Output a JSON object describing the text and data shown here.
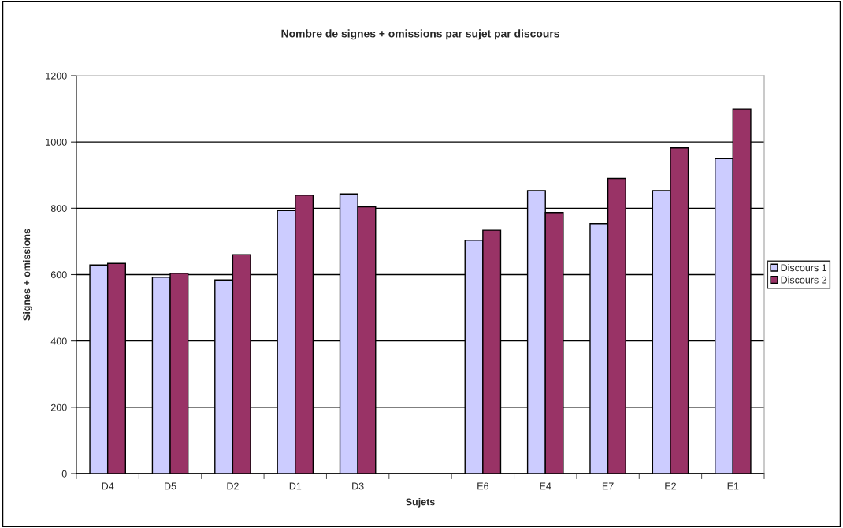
{
  "chart_data": {
    "type": "bar",
    "title": "Nombre de signes + omissions par sujet par discours",
    "xlabel": "Sujets",
    "ylabel": "Signes + omissions",
    "categories": [
      "D4",
      "D5",
      "D2",
      "D1",
      "D3",
      null,
      "E6",
      "E4",
      "E7",
      "E2",
      "E1"
    ],
    "series": [
      {
        "name": "Discours 1",
        "color": "#ccccff",
        "values": [
          629,
          592,
          584,
          793,
          843,
          null,
          704,
          853,
          754,
          853,
          950
        ]
      },
      {
        "name": "Discours 2",
        "color": "#993366",
        "values": [
          634,
          604,
          660,
          839,
          804,
          null,
          734,
          787,
          890,
          982,
          1100
        ]
      }
    ],
    "ylim": [
      0,
      1200
    ],
    "yticks": [
      0,
      200,
      400,
      600,
      800,
      1000,
      1200
    ],
    "grid": "y",
    "legend": "right"
  }
}
